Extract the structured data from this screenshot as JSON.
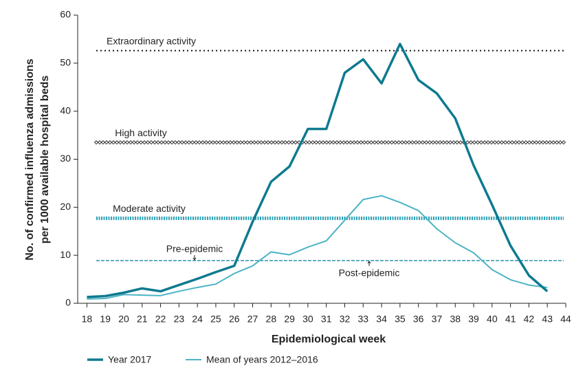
{
  "chart_data": {
    "type": "line",
    "ylabel": [
      "No. of confirmed influenza admissions",
      "per 1000 available hospital beds"
    ],
    "xlabel": "Epidemiological week",
    "x": [
      18,
      19,
      20,
      21,
      22,
      23,
      24,
      25,
      26,
      27,
      28,
      29,
      30,
      31,
      32,
      33,
      34,
      35,
      36,
      37,
      38,
      39,
      40,
      41,
      42,
      43
    ],
    "series": [
      {
        "name": "Year 2017",
        "color": "#0d7a8f",
        "width": 3.5,
        "values": [
          1.3,
          1.5,
          2.2,
          3.1,
          2.5,
          3.8,
          5.1,
          6.5,
          7.8,
          17,
          25.3,
          28.5,
          36.3,
          36.3,
          48,
          50.8,
          45.8,
          54,
          46.5,
          43.7,
          38.5,
          28.7,
          20.5,
          12,
          5.8,
          2.5
        ]
      },
      {
        "name": "Mean of years 2012–2016",
        "color": "#4bb3c4",
        "width": 2,
        "values": [
          0.9,
          1.0,
          1.8,
          1.7,
          1.6,
          2.5,
          3.3,
          4,
          6.2,
          7.8,
          10.7,
          10.1,
          11.7,
          13,
          17.3,
          21.6,
          22.4,
          21,
          19.3,
          15.5,
          12.6,
          10.5,
          7,
          4.9,
          3.8,
          3.3
        ]
      }
    ],
    "thresholds": [
      {
        "labels": [
          "Extraordinary activity"
        ],
        "value": 52.6,
        "color": "#111111",
        "style": "dotted"
      },
      {
        "labels": [
          "High activity"
        ],
        "value": 33.5,
        "color": "#111111",
        "style": "diamond"
      },
      {
        "labels": [
          "Moderate activity"
        ],
        "value": 17.7,
        "color": "#2aa0b5",
        "style": "dashed-thick"
      },
      {
        "labels": [
          "Pre-epidemic",
          "Post-epidemic"
        ],
        "value": 8.9,
        "color": "#2a93a8",
        "style": "dashed"
      }
    ],
    "xlim": [
      17.5,
      44
    ],
    "xticks": [
      18,
      19,
      20,
      21,
      22,
      23,
      24,
      25,
      26,
      27,
      28,
      29,
      30,
      31,
      32,
      33,
      34,
      35,
      36,
      37,
      38,
      39,
      40,
      41,
      42,
      43,
      44
    ],
    "ylim": [
      0,
      60
    ],
    "yticks": [
      0,
      10,
      20,
      30,
      40,
      50,
      60
    ],
    "legend": "bottom-left"
  }
}
